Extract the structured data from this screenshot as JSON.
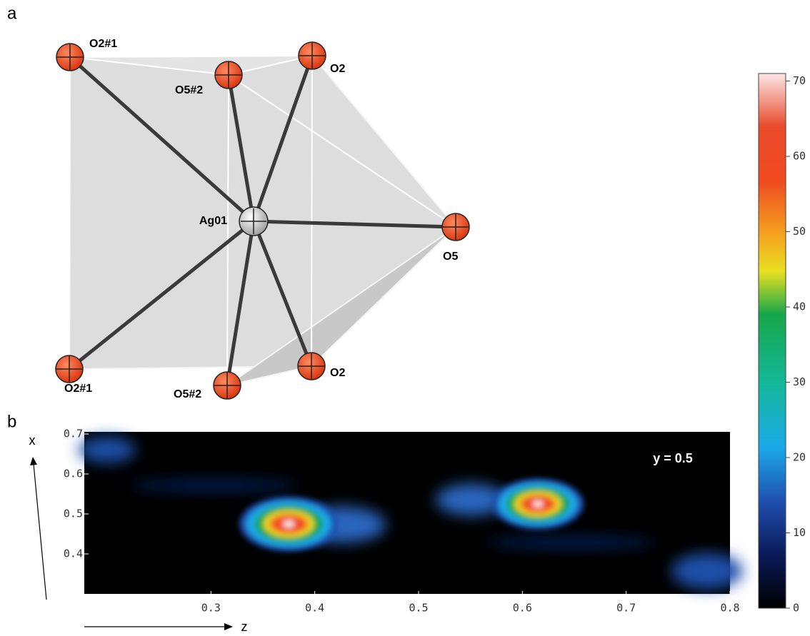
{
  "panel_a": {
    "label": "a",
    "atoms": [
      "O2#1",
      "O5#2",
      "O2",
      "Ag01",
      "O5",
      "O2#1",
      "O5#2",
      "O2"
    ]
  },
  "chart_data": {
    "type": "heatmap",
    "panel_label": "b",
    "annotation": "y = 0.5",
    "xlabel": "z",
    "ylabel": "x",
    "xlim": [
      0.2,
      0.8
    ],
    "xticks": [
      0.3,
      0.4,
      0.5,
      0.6,
      0.7,
      0.8
    ],
    "ylim": [
      0.3,
      0.7
    ],
    "yticks": [
      0.4,
      0.5,
      0.6,
      0.7
    ],
    "x": [
      0.375,
      0.615
    ],
    "y": [
      0.475,
      0.525
    ],
    "values": [
      70,
      65
    ],
    "clim": [
      0,
      71
    ],
    "cticks": [
      0,
      10,
      20,
      30,
      40,
      50,
      60,
      70
    ]
  }
}
